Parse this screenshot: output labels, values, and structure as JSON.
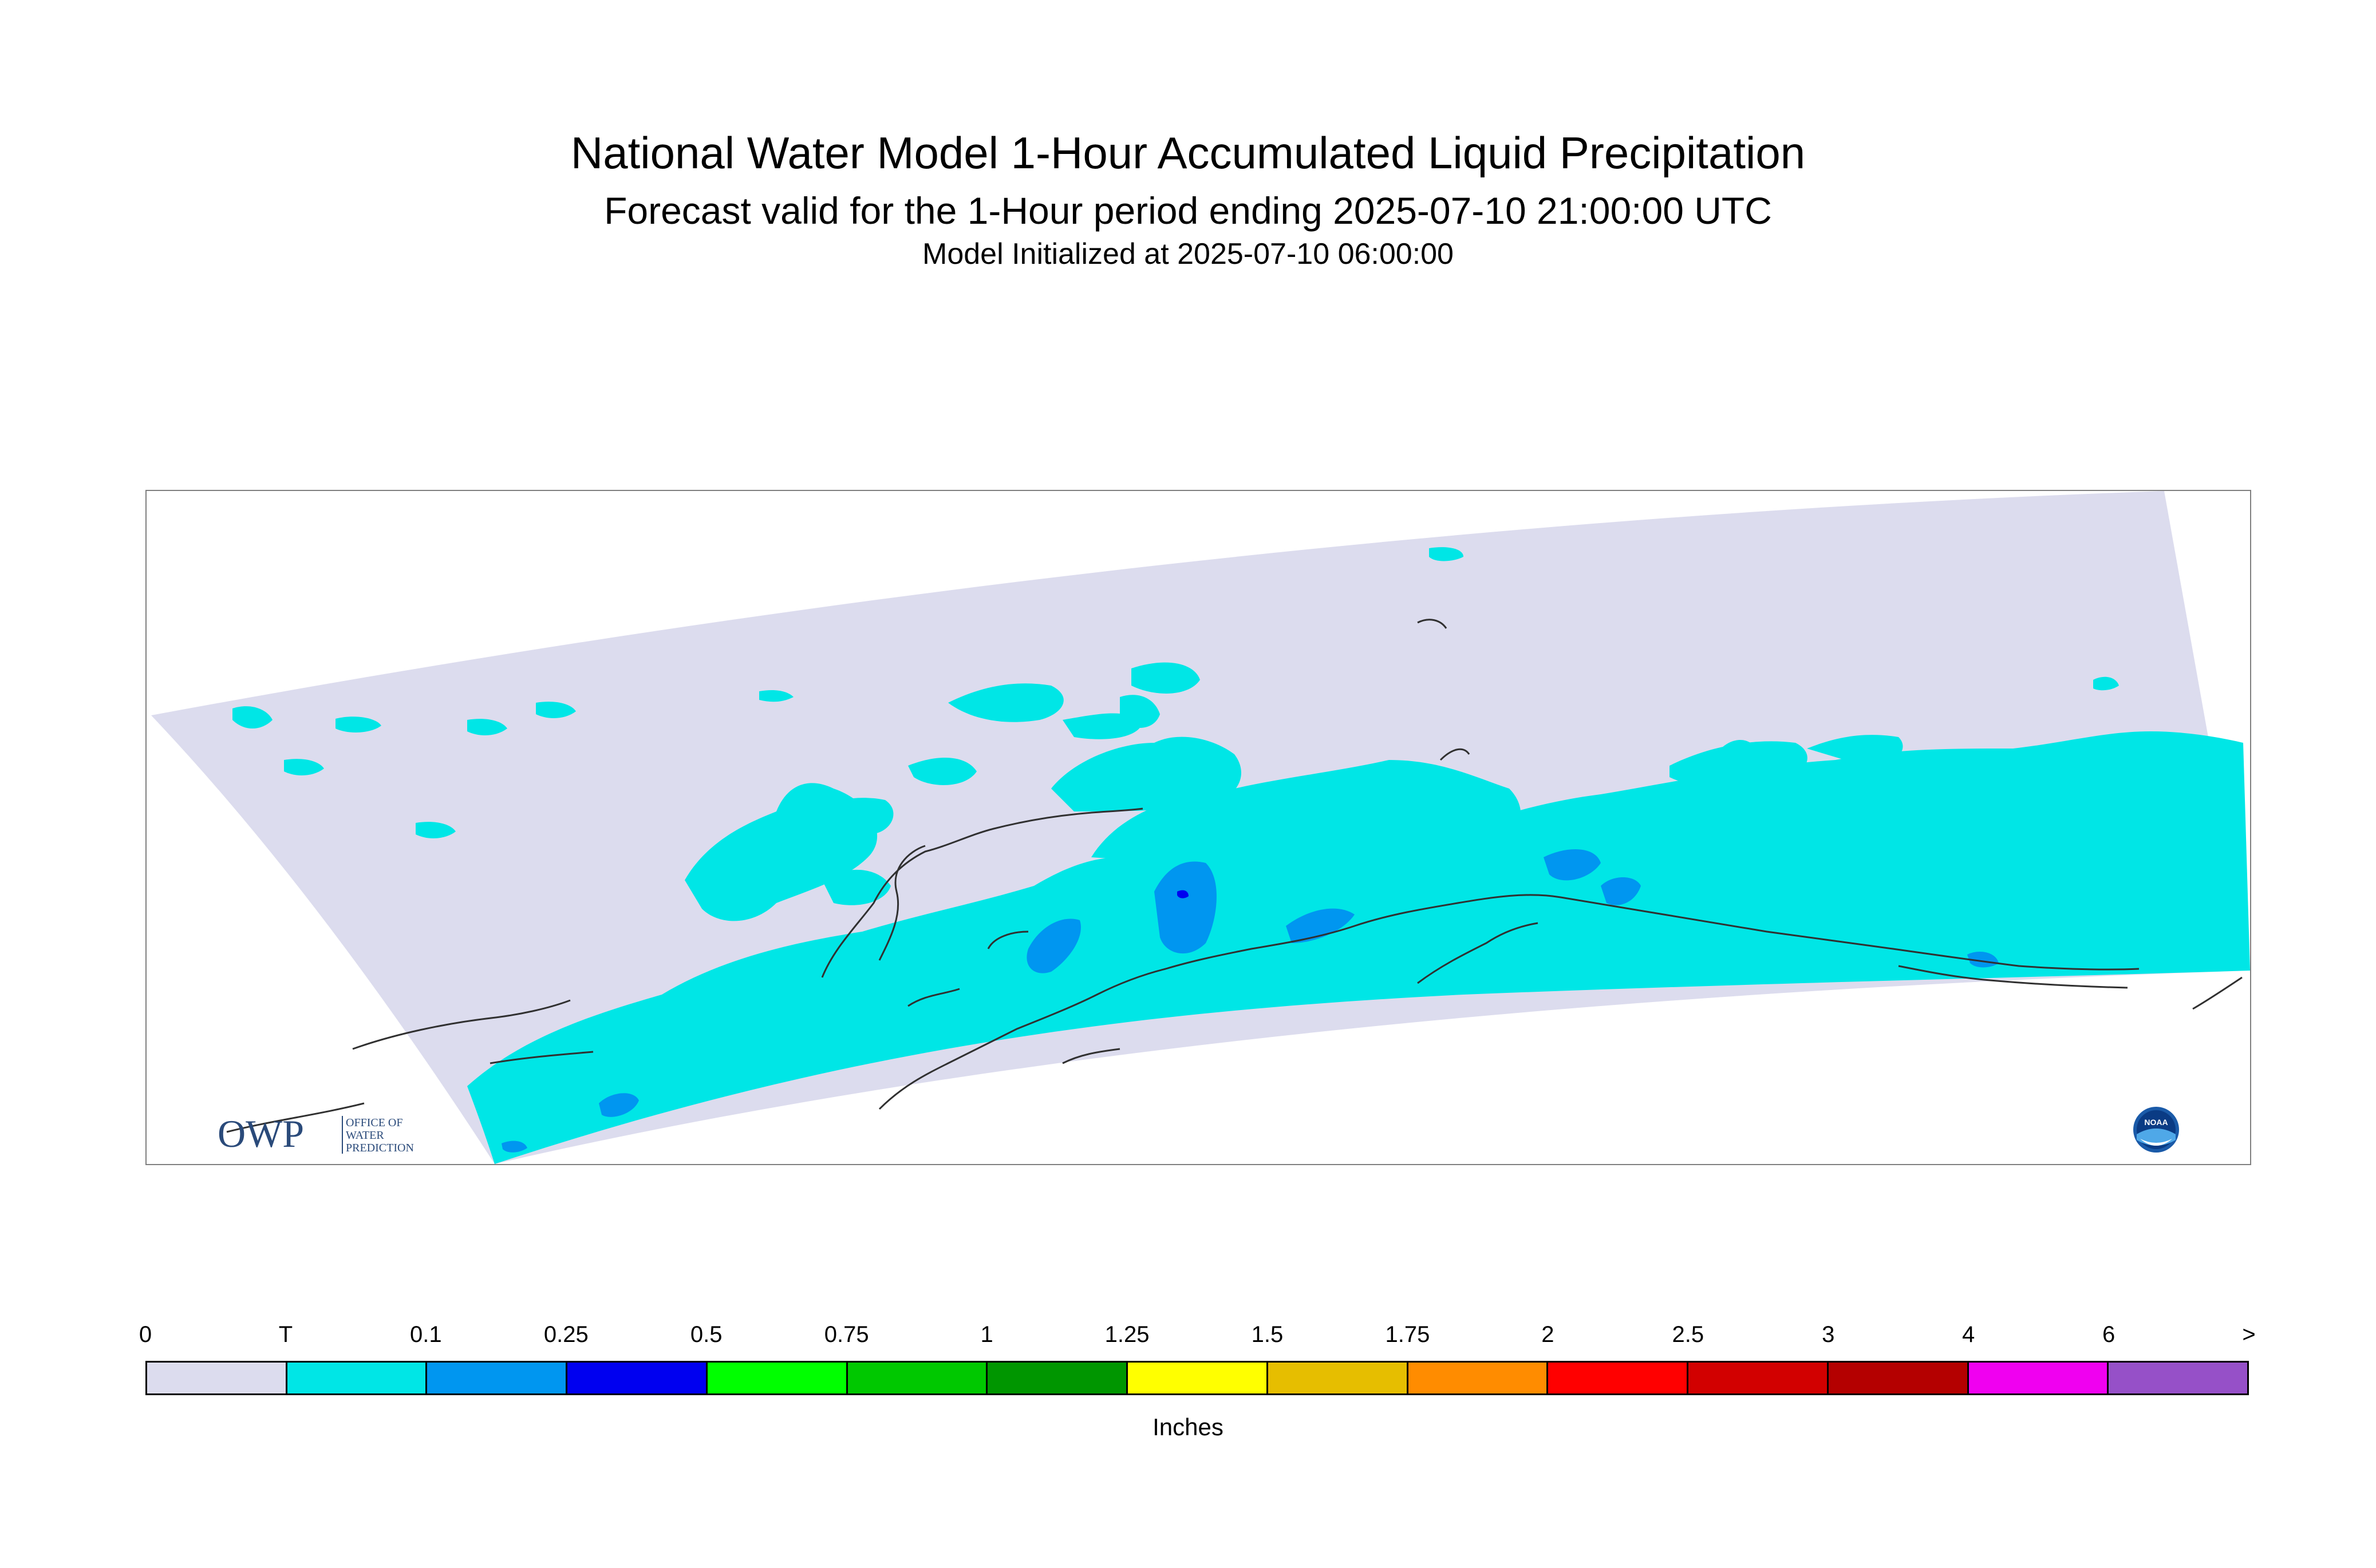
{
  "title": "National Water Model 1-Hour Accumulated Liquid Precipitation",
  "subtitle": "Forecast valid for the 1-Hour period ending 2025-07-10 21:00:00 UTC",
  "init_line": "Model Initialized at 2025-07-10 06:00:00",
  "logos": {
    "owp_mark": "OWP",
    "owp_text": [
      "OFFICE OF",
      "WATER",
      "PREDICTION"
    ],
    "noaa_text": "NOAA"
  },
  "colors": {
    "domain_bg": "#dcdcee",
    "precip_trace": "#00e6e6",
    "precip_light": "#0096f0",
    "precip_mod": "#0000f0",
    "coastline": "#303030"
  },
  "legend": {
    "unit": "Inches",
    "labels": [
      "0",
      "T",
      "0.1",
      "0.25",
      "0.5",
      "0.75",
      "1",
      "1.25",
      "1.5",
      "1.75",
      "2",
      "2.5",
      "3",
      "4",
      "6",
      ">"
    ],
    "colors": [
      "#dcdcee",
      "#00e6e6",
      "#0096f0",
      "#0000f0",
      "#00ff00",
      "#00c800",
      "#009600",
      "#ffff00",
      "#e6be00",
      "#ff8c00",
      "#ff0000",
      "#d20000",
      "#b40000",
      "#f000f0",
      "#9650c8"
    ]
  }
}
